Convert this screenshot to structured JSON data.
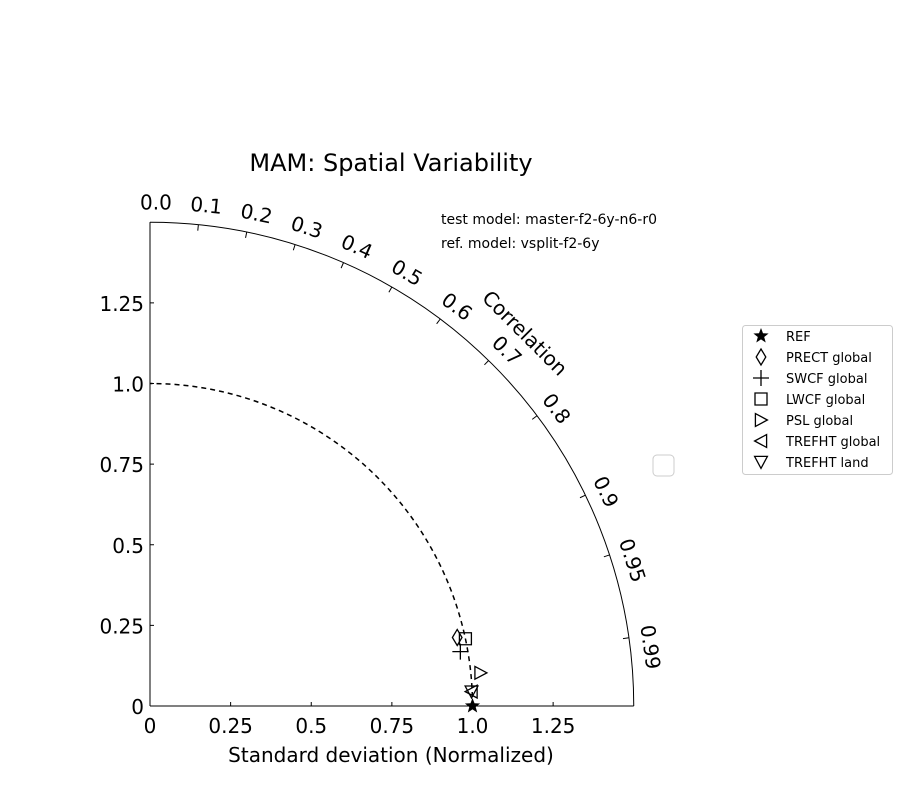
{
  "chart_data": {
    "type": "scatter",
    "subtype": "taylor-diagram",
    "title": "MAM: Spatial Variability",
    "xlabel": "Standard deviation (Normalized)",
    "correlation_label": "Correlation",
    "annotations": [
      "test model: master-f2-6y-n6-r0",
      "ref. model: vsplit-f2-6y"
    ],
    "std_range": [
      0,
      1.5
    ],
    "std_ticks": [
      0,
      0.25,
      0.5,
      0.75,
      1.0,
      1.25
    ],
    "std_tick_labels": [
      "0",
      "0.25",
      "0.5",
      "0.75",
      "1.0",
      "1.25"
    ],
    "corr_ticks": [
      0.0,
      0.1,
      0.2,
      0.3,
      0.4,
      0.5,
      0.6,
      0.7,
      0.8,
      0.9,
      0.95,
      0.99
    ],
    "corr_tick_labels": [
      "0.0",
      "0.1",
      "0.2",
      "0.3",
      "0.4",
      "0.5",
      "0.6",
      "0.7",
      "0.8",
      "0.9",
      "0.95",
      "0.99"
    ],
    "reference_std": 1.0,
    "legend_position": "right",
    "series": [
      {
        "name": "REF",
        "marker": "star",
        "std": 1.0,
        "corr": 1.0
      },
      {
        "name": "PRECT global",
        "marker": "diamond",
        "std": 0.976,
        "corr": 0.976
      },
      {
        "name": "SWCF global",
        "marker": "plus",
        "std": 0.977,
        "corr": 0.985
      },
      {
        "name": "LWCF global",
        "marker": "square",
        "std": 1.0,
        "corr": 0.978
      },
      {
        "name": "PSL global",
        "marker": "triangle-right",
        "std": 1.03,
        "corr": 0.995
      },
      {
        "name": "TREFHT global",
        "marker": "triangle-left",
        "std": 0.998,
        "corr": 0.999
      },
      {
        "name": "TREFHT land",
        "marker": "triangle-down",
        "std": 0.998,
        "corr": 0.999
      }
    ]
  }
}
